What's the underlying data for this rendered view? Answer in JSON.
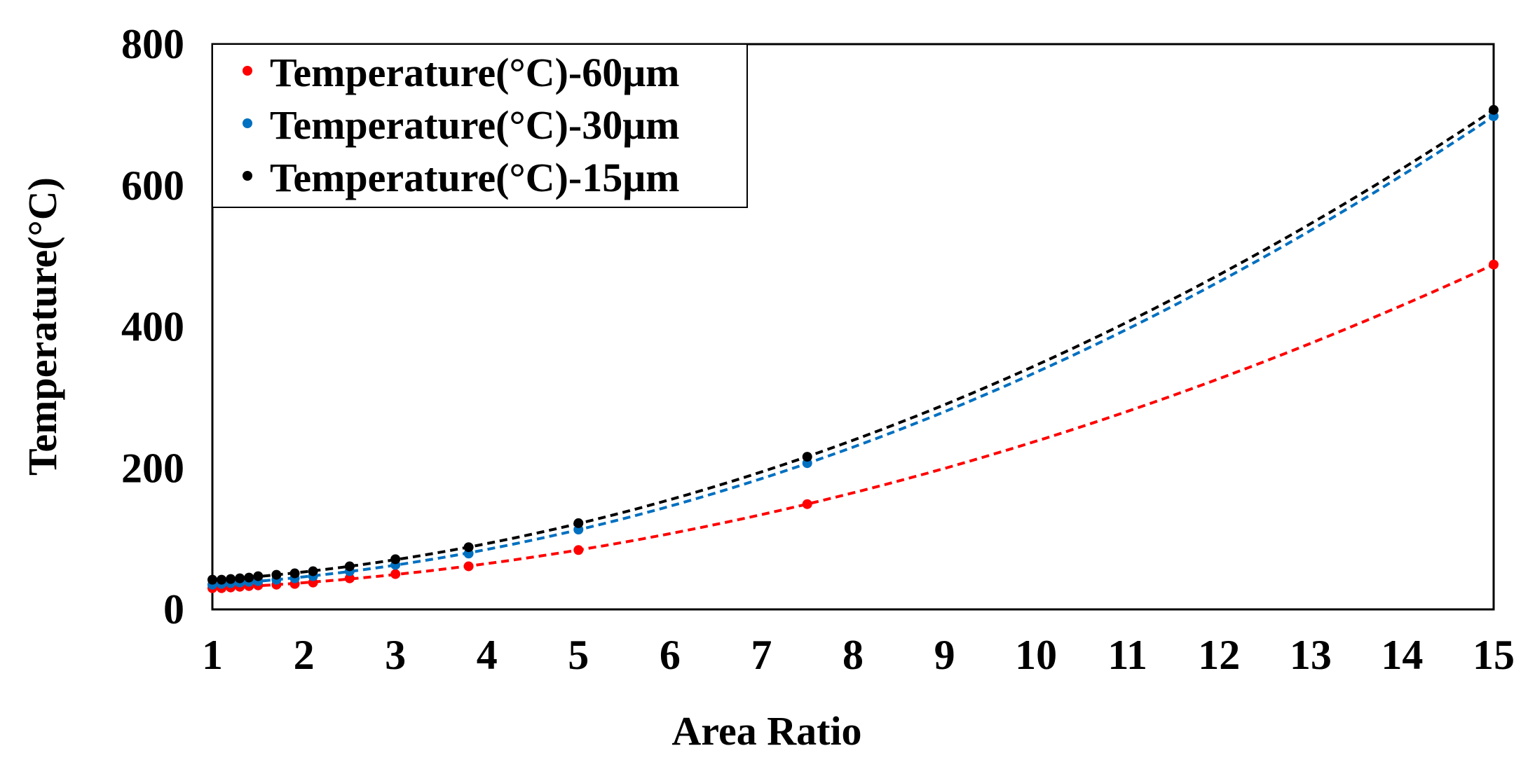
{
  "chart_data": {
    "type": "scatter",
    "title": "",
    "xlabel": "Area Ratio",
    "ylabel": "Temperature(°C)",
    "xlim": [
      1,
      15
    ],
    "ylim": [
      0,
      800
    ],
    "xticks": [
      "1",
      "2",
      "3",
      "4",
      "5",
      "6",
      "7",
      "8",
      "9",
      "10",
      "11",
      "12",
      "13",
      "14",
      "15"
    ],
    "yticks": [
      "0",
      "200",
      "400",
      "600",
      "800"
    ],
    "grid": false,
    "legend_position": "top-left",
    "series": [
      {
        "name": "Temperature(°C)-60μm",
        "color": "#ff0000",
        "x": [
          1,
          1.1,
          1.2,
          1.3,
          1.4,
          1.5,
          1.7,
          1.9,
          2.1,
          2.5,
          3,
          3.8,
          5,
          7.5,
          15
        ],
        "y": [
          30,
          30,
          31,
          32,
          33,
          34,
          35,
          36,
          38,
          44,
          50,
          61,
          84,
          149,
          488
        ],
        "trendline": {
          "type": "polynomial",
          "x_end": 15,
          "y_end": 488
        }
      },
      {
        "name": "Temperature(°C)-30μm",
        "color": "#0070c0",
        "x": [
          1,
          1.1,
          1.2,
          1.3,
          1.4,
          1.5,
          1.7,
          1.9,
          2.1,
          2.5,
          3,
          3.8,
          5,
          7.5,
          15
        ],
        "y": [
          35,
          36,
          37,
          38,
          39,
          40,
          42,
          44,
          47,
          54,
          63,
          79,
          113,
          207,
          698
        ],
        "trendline": {
          "type": "polynomial",
          "x_end": 15,
          "y_end": 698
        }
      },
      {
        "name": "Temperature(°C)-15μm",
        "color": "#000000",
        "x": [
          1,
          1.1,
          1.2,
          1.3,
          1.4,
          1.5,
          1.7,
          1.9,
          2.1,
          2.5,
          3,
          3.8,
          5,
          7.5,
          15
        ],
        "y": [
          42,
          42,
          43,
          44,
          45,
          47,
          49,
          51,
          54,
          61,
          71,
          88,
          122,
          216,
          707
        ],
        "trendline": {
          "type": "polynomial",
          "x_end": 15,
          "y_end": 707
        }
      }
    ]
  }
}
